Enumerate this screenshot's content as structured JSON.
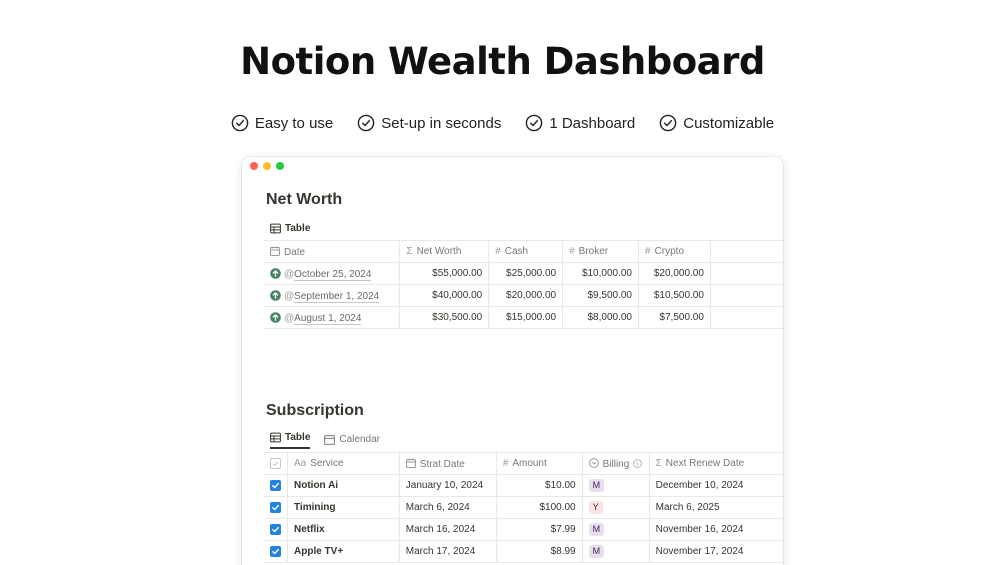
{
  "hero": {
    "title": "Notion Wealth Dashboard",
    "features": [
      "Easy to use",
      "Set-up in seconds",
      "1 Dashboard",
      "Customizable"
    ]
  },
  "net_worth": {
    "title": "Net Worth",
    "view_label": "Table",
    "columns": [
      "Date",
      "Net Worth",
      "Cash",
      "Broker",
      "Crypto"
    ],
    "rows": [
      {
        "date": "October 25, 2024",
        "net_worth": "$55,000.00",
        "cash": "$25,000.00",
        "broker": "$10,000.00",
        "crypto": "$20,000.00"
      },
      {
        "date": "September 1, 2024",
        "net_worth": "$40,000.00",
        "cash": "$20,000.00",
        "broker": "$9,500.00",
        "crypto": "$10,500.00"
      },
      {
        "date": "August 1, 2024",
        "net_worth": "$30,500.00",
        "cash": "$15,000.00",
        "broker": "$8,000.00",
        "crypto": "$7,500.00"
      }
    ]
  },
  "subscription": {
    "title": "Subscription",
    "tabs": [
      "Table",
      "Calendar"
    ],
    "columns": [
      "Service",
      "Strat Date",
      "Amount",
      "Billing",
      "Next Renew Date"
    ],
    "service_prefix": "Aa",
    "rows": [
      {
        "service": "Notion Ai",
        "start": "January 10, 2024",
        "amount": "$10.00",
        "billing": "M",
        "renew": "December 10, 2024"
      },
      {
        "service": "Timining",
        "start": "March 6, 2024",
        "amount": "$100.00",
        "billing": "Y",
        "renew": "March 6, 2025"
      },
      {
        "service": "Netflix",
        "start": "March 16, 2024",
        "amount": "$7.99",
        "billing": "M",
        "renew": "November 16, 2024"
      },
      {
        "service": "Apple TV+",
        "start": "March 17, 2024",
        "amount": "$8.99",
        "billing": "M",
        "renew": "November 17, 2024"
      }
    ]
  },
  "colors": {
    "checkbox": "#2383e2",
    "up_arrow": "#448361",
    "badge_m": "#e8deee",
    "badge_y": "#fbe4e4"
  },
  "icons": {
    "feature": "check-circle-icon",
    "table_view": "table-icon",
    "calendar_view": "calendar-icon",
    "row_status": "arrow-up-circle-icon"
  }
}
